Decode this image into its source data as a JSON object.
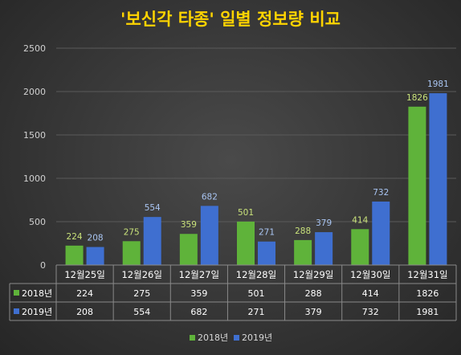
{
  "chart_data": {
    "type": "bar",
    "title": "'보신각 타종' 일별 정보량 비교",
    "categories": [
      "12월25일",
      "12월26일",
      "12월27일",
      "12월28일",
      "12월29일",
      "12월30일",
      "12월31일"
    ],
    "series": [
      {
        "name": "2018년",
        "values": [
          224,
          275,
          359,
          501,
          288,
          414,
          1826
        ],
        "color": "#5fb33a"
      },
      {
        "name": "2019년",
        "values": [
          208,
          554,
          682,
          271,
          379,
          732,
          1981
        ],
        "color": "#3f6fd0"
      }
    ],
    "ylim": [
      0,
      2500
    ],
    "yticks": [
      0,
      500,
      1000,
      1500,
      2000,
      2500
    ],
    "grid": true,
    "legend": "bottom",
    "data_table": true
  }
}
